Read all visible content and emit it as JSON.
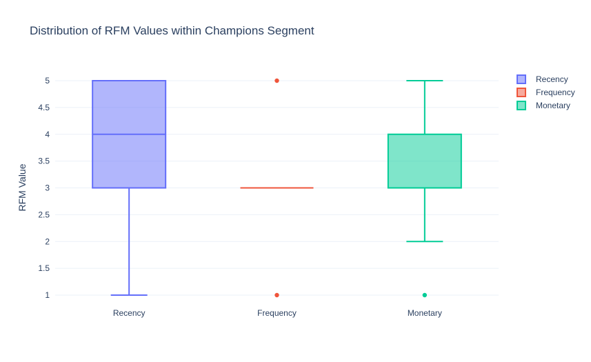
{
  "chart_data": {
    "type": "box",
    "title": "Distribution of RFM Values within Champions Segment",
    "xlabel": "",
    "ylabel": "RFM Value",
    "ylim": [
      1,
      5
    ],
    "yticks": [
      "1",
      "1.5",
      "2",
      "2.5",
      "3",
      "3.5",
      "4",
      "4.5",
      "5"
    ],
    "categories": [
      "Recency",
      "Frequency",
      "Monetary"
    ],
    "grid": true,
    "legend_position": "top-right",
    "series": [
      {
        "name": "Recency",
        "color": "#636efa",
        "min": 1,
        "q1": 3,
        "median": 4,
        "q3": 5,
        "max": 5,
        "outliers": []
      },
      {
        "name": "Frequency",
        "color": "#EF553B",
        "min": 3,
        "q1": 3,
        "median": 3,
        "q3": 3,
        "max": 3,
        "outliers": [
          1,
          5
        ]
      },
      {
        "name": "Monetary",
        "color": "#00cc96",
        "min": 2,
        "q1": 3,
        "median": 3,
        "q3": 4,
        "max": 5,
        "outliers": [
          1
        ]
      }
    ]
  }
}
